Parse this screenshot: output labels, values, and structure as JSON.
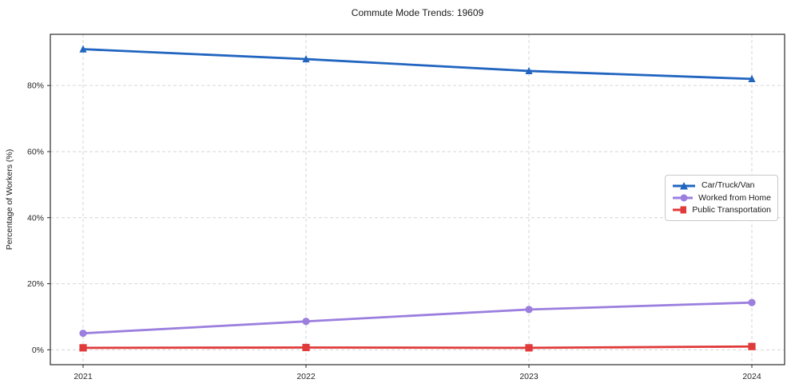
{
  "figure": {
    "title": "Commute Mode Trends: 19609",
    "background": "#ffffff"
  },
  "chart_data": {
    "type": "line",
    "title": "Commute Mode Trends: 19609",
    "xlabel": "",
    "ylabel": "Percentage of Workers (%)",
    "categories": [
      "2021",
      "2022",
      "2023",
      "2024"
    ],
    "series": [
      {
        "name": "Car/Truck/Van",
        "values": [
          91.0,
          88.0,
          84.4,
          82.0
        ],
        "color": "#2165c0",
        "marker": "triangle"
      },
      {
        "name": "Worked from Home",
        "values": [
          5.0,
          8.6,
          12.2,
          14.3
        ],
        "color": "#9b7ede",
        "marker": "circle"
      },
      {
        "name": "Public Transportation",
        "values": [
          0.6,
          0.7,
          0.6,
          1.0
        ],
        "color": "#e03a3a",
        "marker": "square"
      }
    ],
    "yticks": {
      "values": [
        0,
        20,
        40,
        60,
        80
      ],
      "labels": [
        "0%",
        "20%",
        "40%",
        "60%",
        "80%"
      ]
    },
    "ylim": [
      -4.5,
      95.5
    ],
    "grid": "dashed-both",
    "grid_color": "#d6d6d6",
    "axis_color": "#2b2b2b",
    "legend_position": "center-right"
  }
}
